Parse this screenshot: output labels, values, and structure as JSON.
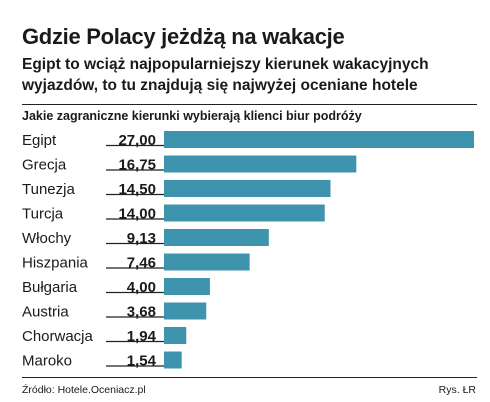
{
  "header": {
    "title": "Gdzie Polacy jeżdżą na wakacje",
    "subtitle": "Egipt to wciąż najpopularniejszy kierunek wakacyjnych wyjazdów, to tu znajdują się najwyżej oceniane hotele"
  },
  "chart_data": {
    "type": "bar",
    "orientation": "horizontal",
    "title": "Jakie zagraniczne kierunki wybierają klienci biur podróży",
    "categories": [
      "Egipt",
      "Grecja",
      "Tunezja",
      "Turcja",
      "Włochy",
      "Hiszpania",
      "Bułgaria",
      "Austria",
      "Chorwacja",
      "Maroko"
    ],
    "values": [
      27.0,
      16.75,
      14.5,
      14.0,
      9.13,
      7.46,
      4.0,
      3.68,
      1.94,
      1.54
    ],
    "value_labels": [
      "27,00",
      "16,75",
      "14,50",
      "14,00",
      "9,13",
      "7,46",
      "4,00",
      "3,68",
      "1,94",
      "1,54"
    ],
    "xlim": [
      0,
      27
    ],
    "grid": false,
    "bar_color": "#3f94ad",
    "leader_color": "#222222"
  },
  "footer": {
    "source": "Źródło: Hotele.Oceniacz.pl",
    "credit": "Rys. ŁR"
  }
}
